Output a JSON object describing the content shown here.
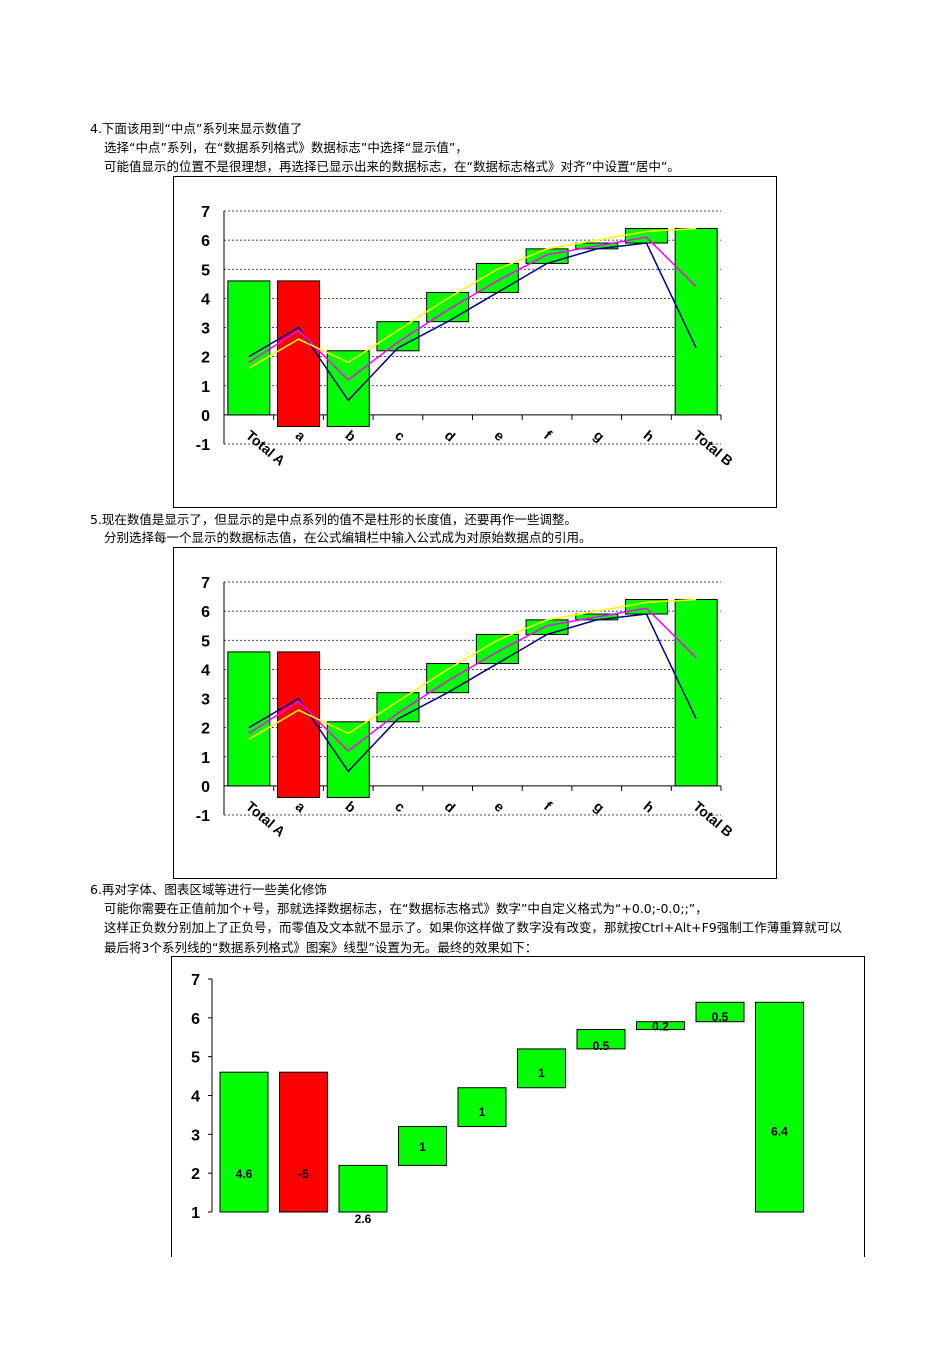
{
  "section4": {
    "heading": "4.下面该用到“中点”系列来显示数值了",
    "line1": "选择“中点”系列，在“数据系列格式》数据标志”中选择“显示值”，",
    "line2": "可能值显示的位置不是很理想，再选择已显示出来的数据标志，在“数据标志格式》对齐”中设置“居中”。"
  },
  "section5": {
    "heading": "5.现在数值是显示了，但显示的是中点系列的值不是柱形的长度值，还要再作一些调整。",
    "line1": "分别选择每一个显示的数据标志值，在公式编辑栏中输入公式成为对原始数据点的引用。"
  },
  "section6": {
    "heading": "6.再对字体、图表区域等进行一些美化修饰",
    "line1": "可能你需要在正值前加个+号，那就选择数据标志，在“数据标志格式》数字”中自定义格式为“+0.0;-0.0;;”，",
    "line2": "这样正负数分别加上了正负号，而零值及文本就不显示了。如果你这样做了数字没有改变，那就按Ctrl+Alt+F9强制工作薄重算就可以",
    "line3": "最后将3个系列线的“数据系列格式》图案》线型”设置为无。最终的效果如下："
  },
  "colors": {
    "positive": "#00ff00",
    "negative": "#ff0000",
    "grid": "#00008b",
    "line_navy": "#000080",
    "line_magenta": "#ff00ff",
    "line_yellow": "#ffff00"
  },
  "chart_data": [
    {
      "type": "bar",
      "categories": [
        "Total A",
        "a",
        "b",
        "c",
        "d",
        "e",
        "f",
        "g",
        "h",
        "Total B"
      ],
      "bars": [
        {
          "bottom": 0,
          "top": 4.6,
          "color": "positive"
        },
        {
          "bottom": -0.4,
          "top": 4.6,
          "color": "negative"
        },
        {
          "bottom": -0.4,
          "top": 2.2,
          "color": "positive"
        },
        {
          "bottom": 2.2,
          "top": 3.2,
          "color": "positive"
        },
        {
          "bottom": 3.2,
          "top": 4.2,
          "color": "positive"
        },
        {
          "bottom": 4.2,
          "top": 5.2,
          "color": "positive"
        },
        {
          "bottom": 5.2,
          "top": 5.7,
          "color": "positive"
        },
        {
          "bottom": 5.7,
          "top": 5.9,
          "color": "positive"
        },
        {
          "bottom": 5.9,
          "top": 6.4,
          "color": "positive"
        },
        {
          "bottom": 0,
          "top": 6.4,
          "color": "positive"
        }
      ],
      "series_lines": [
        {
          "color": "line_navy",
          "values": [
            2.0,
            3.0,
            0.5,
            2.3,
            3.2,
            4.2,
            5.2,
            5.7,
            5.9,
            2.3
          ]
        },
        {
          "color": "line_magenta",
          "values": [
            1.8,
            2.9,
            1.2,
            2.5,
            3.6,
            4.6,
            5.5,
            5.8,
            6.1,
            4.4
          ]
        },
        {
          "color": "line_yellow",
          "values": [
            1.6,
            2.6,
            1.8,
            2.9,
            4.0,
            5.0,
            5.7,
            6.0,
            6.3,
            6.4
          ]
        }
      ],
      "ylim": [
        -1,
        7
      ],
      "yticks": [
        "7",
        "6",
        "5",
        "4",
        "3",
        "2",
        "1",
        "0",
        "-1"
      ],
      "grid": true
    },
    {
      "type": "bar",
      "categories": [
        "Total A",
        "a",
        "b",
        "c",
        "d",
        "e",
        "f",
        "g",
        "h",
        "Total B"
      ],
      "bars": [
        {
          "bottom": 0,
          "top": 4.6,
          "color": "positive"
        },
        {
          "bottom": -0.4,
          "top": 4.6,
          "color": "negative"
        },
        {
          "bottom": -0.4,
          "top": 2.2,
          "color": "positive"
        },
        {
          "bottom": 2.2,
          "top": 3.2,
          "color": "positive"
        },
        {
          "bottom": 3.2,
          "top": 4.2,
          "color": "positive"
        },
        {
          "bottom": 4.2,
          "top": 5.2,
          "color": "positive"
        },
        {
          "bottom": 5.2,
          "top": 5.7,
          "color": "positive"
        },
        {
          "bottom": 5.7,
          "top": 5.9,
          "color": "positive"
        },
        {
          "bottom": 5.9,
          "top": 6.4,
          "color": "positive"
        },
        {
          "bottom": 0,
          "top": 6.4,
          "color": "positive"
        }
      ],
      "series_lines": [
        {
          "color": "line_navy",
          "values": [
            2.0,
            3.0,
            0.5,
            2.3,
            3.2,
            4.2,
            5.2,
            5.7,
            5.9,
            2.3
          ]
        },
        {
          "color": "line_magenta",
          "values": [
            1.8,
            2.9,
            1.2,
            2.5,
            3.6,
            4.6,
            5.5,
            5.8,
            6.1,
            4.4
          ]
        },
        {
          "color": "line_yellow",
          "values": [
            1.6,
            2.6,
            1.8,
            2.9,
            4.0,
            5.0,
            5.7,
            6.0,
            6.3,
            6.4
          ]
        }
      ],
      "ylim": [
        -1,
        7
      ],
      "yticks": [
        "7",
        "6",
        "5",
        "4",
        "3",
        "2",
        "1",
        "0",
        "-1"
      ],
      "grid": true
    },
    {
      "type": "bar",
      "bars": [
        {
          "bottom": 0,
          "top": 4.6,
          "color": "positive",
          "label": "4.6",
          "label_at": 2.0
        },
        {
          "bottom": 0,
          "top": 4.6,
          "color": "negative",
          "label": "-5",
          "label_at": 2.0
        },
        {
          "bottom": 0,
          "top": 2.2,
          "color": "positive",
          "label": "2.6",
          "label_at": 0.85
        },
        {
          "bottom": 2.2,
          "top": 3.2,
          "color": "positive",
          "label": "1",
          "label_at": 2.7
        },
        {
          "bottom": 3.2,
          "top": 4.2,
          "color": "positive",
          "label": "1",
          "label_at": 3.6
        },
        {
          "bottom": 4.2,
          "top": 5.2,
          "color": "positive",
          "label": "1",
          "label_at": 4.6
        },
        {
          "bottom": 5.2,
          "top": 5.7,
          "color": "positive",
          "label": "0.5",
          "label_at": 5.3
        },
        {
          "bottom": 5.7,
          "top": 5.9,
          "color": "positive",
          "label": "0.2",
          "label_at": 5.8
        },
        {
          "bottom": 5.9,
          "top": 6.4,
          "color": "positive",
          "label": "0.5",
          "label_at": 6.05
        },
        {
          "bottom": 0,
          "top": 6.4,
          "color": "positive",
          "label": "6.4",
          "label_at": 3.1
        }
      ],
      "ylim": [
        1,
        7
      ],
      "yticks": [
        "7",
        "6",
        "5",
        "4",
        "3",
        "2",
        "1"
      ],
      "grid": false
    }
  ]
}
